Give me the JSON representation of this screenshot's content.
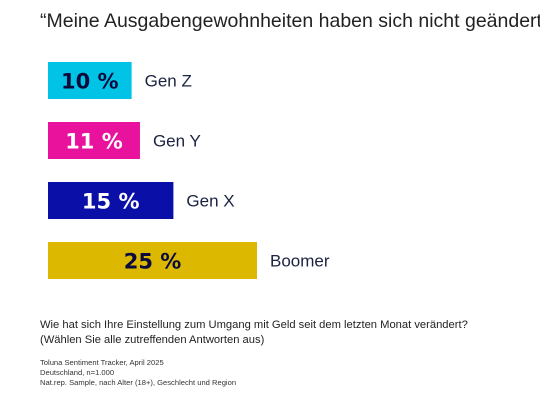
{
  "chart_data": {
    "type": "bar",
    "orientation": "horizontal",
    "title": "“Meine Ausgabengewohnheiten haben sich nicht geändert”",
    "categories": [
      "Gen Z",
      "Gen Y",
      "Gen X",
      "Boomer"
    ],
    "values": [
      10,
      11,
      15,
      25
    ],
    "value_labels": [
      "10 %",
      "11 %",
      "15 %",
      "25 %"
    ],
    "colors": [
      "#00c3e6",
      "#e8129c",
      "#0a0fa8",
      "#dcb800"
    ],
    "label_colors": [
      "#0a0a3c",
      "#ffffff",
      "#ffffff",
      "#0a0a3c"
    ],
    "xlim": [
      0,
      25
    ],
    "xlabel": "",
    "ylabel": "",
    "grid": false,
    "legend": "none"
  },
  "question": "Wie hat sich Ihre Einstellung zum Umgang mit Geld seit dem letzten Monat verändert? (Wählen Sie alle zutreffenden Antworten aus)",
  "source": {
    "line1": "Toluna Sentiment Tracker,  April 2025",
    "line2": "Deutschland, n=1.000",
    "line3": "Nat.rep. Sample, nach Alter (18+), Geschlecht und Region"
  }
}
